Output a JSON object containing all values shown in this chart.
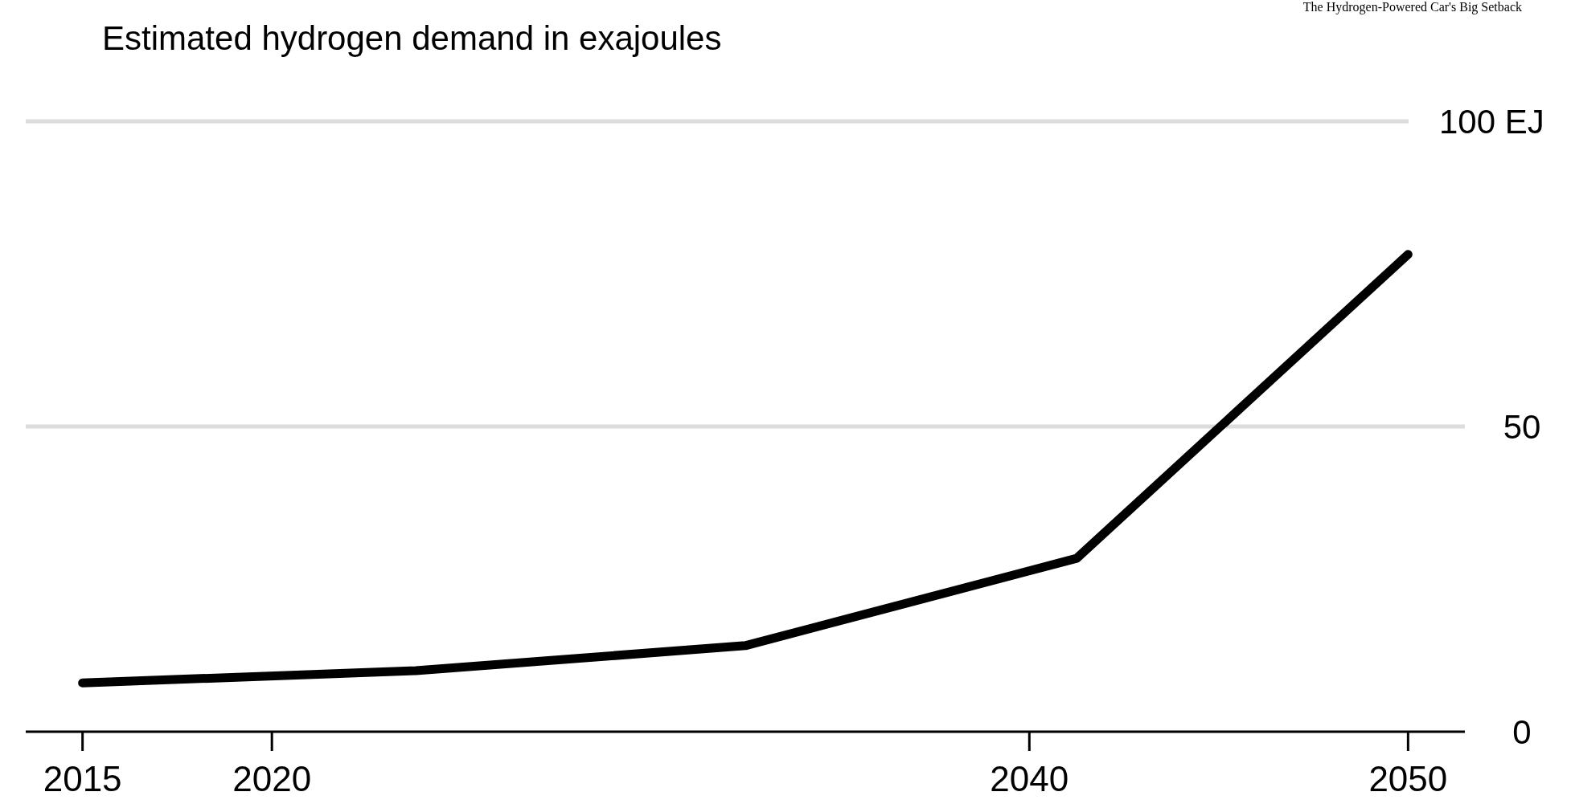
{
  "chart_data": {
    "type": "line",
    "title": "Estimated hydrogen demand in exajoules",
    "annotations": [
      "The Hydrogen-Powered Car's Big Setback"
    ],
    "x": [
      2015,
      2023.8,
      2032.5,
      2041.25,
      2050
    ],
    "series": [
      {
        "color": "#000000",
        "values": [
          8,
          10,
          14.1,
          28.4,
          78.2
        ]
      }
    ],
    "xlim": [
      2013.5,
      2051.5
    ],
    "xticks": [
      2015,
      2020,
      2040,
      2050
    ],
    "ylim": [
      0,
      100
    ],
    "yticks": [
      0,
      50,
      {
        "value": 100,
        "label": "100 EJ"
      }
    ],
    "grid": "y",
    "marker": "none",
    "line_style": "solid"
  }
}
